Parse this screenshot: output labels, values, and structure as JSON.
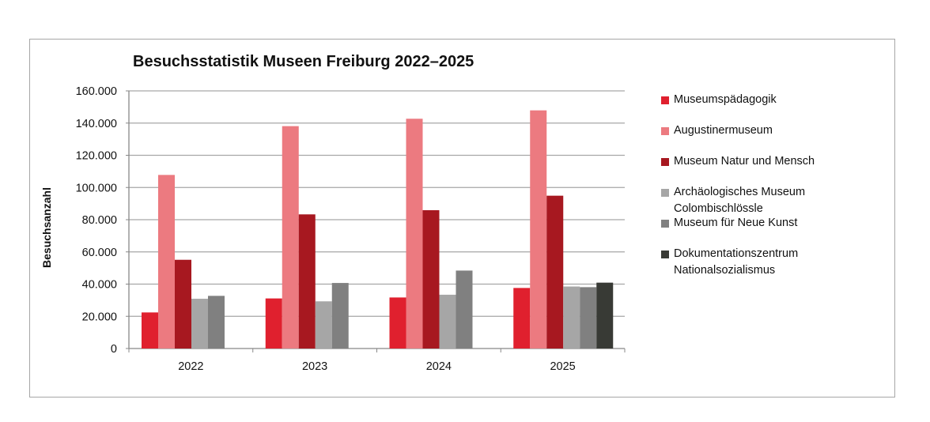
{
  "chart_data": {
    "type": "bar",
    "title": "Besuchsstatistik Museen Freiburg 2022–2025",
    "xlabel": "",
    "ylabel": "Besuchsanzahl",
    "ylim": [
      0,
      160000
    ],
    "yticks": [
      "0",
      "20.000",
      "40.000",
      "60.000",
      "80.000",
      "100.000",
      "120.000",
      "140.000",
      "160.000"
    ],
    "grid": true,
    "legend": "right",
    "categories": [
      "2022",
      "2023",
      "2024",
      "2025"
    ],
    "series": [
      {
        "name": "Museumspädagogik",
        "color": "#e0202e",
        "values": [
          22400,
          31100,
          31700,
          37600
        ]
      },
      {
        "name": "Augustinermuseum",
        "color": "#ec7a80",
        "values": [
          107800,
          138100,
          142700,
          147900
        ]
      },
      {
        "name": "Museum Natur und Mensch",
        "color": "#a71820",
        "values": [
          55100,
          83300,
          85900,
          94900
        ]
      },
      {
        "name": "Archäologisches Museum Colombischlössle",
        "color": "#a6a6a6",
        "values": [
          30900,
          29300,
          33400,
          38500
        ]
      },
      {
        "name": "Museum für Neue Kunst",
        "color": "#808080",
        "values": [
          32700,
          40700,
          48400,
          38100
        ]
      },
      {
        "name": "Dokumentationszentrum Nationalsozialismus",
        "color": "#383a35",
        "values": [
          null,
          null,
          null,
          40900
        ]
      }
    ],
    "legend_lines": [
      [
        "Museumspädagogik"
      ],
      [
        "Augustinermuseum"
      ],
      [
        "Museum Natur und Mensch"
      ],
      [
        "Archäologisches Museum",
        "Colombischlössle"
      ],
      [
        "Museum für Neue Kunst"
      ],
      [
        "Dokumentationszentrum",
        "Nationalsozialismus"
      ]
    ]
  }
}
